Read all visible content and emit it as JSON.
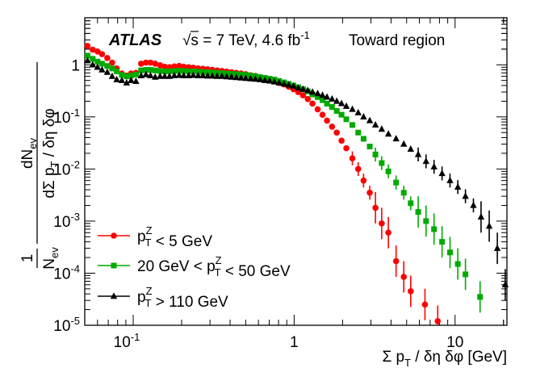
{
  "chart_data": {
    "type": "scatter",
    "xscale": "log",
    "yscale": "log",
    "xlim": [
      0.05,
      21
    ],
    "ylim": [
      1e-05,
      8
    ],
    "xlabel": "Σ p_T / δη δφ [GeV]",
    "ylabel": "1/N_ev dN_ev/dΣ p_T / δη δφ",
    "x_tick_labels": [
      "10^-1",
      "1",
      "10"
    ],
    "y_tick_labels": [
      "10^-5",
      "10^-4",
      "10^-3",
      "10^-2",
      "10^-1",
      "1"
    ],
    "experiment_label": "ATLAS",
    "energy_text": "√s = 7 TeV, 4.6 fb⁻¹",
    "region_text": "Toward region",
    "legend_position": "bottom-left",
    "series": [
      {
        "name": "p_T^Z < 5 GeV",
        "color": "#ff0000",
        "marker": "circle",
        "points": [
          [
            0.052,
            2.3
          ],
          [
            0.056,
            1.95
          ],
          [
            0.06,
            1.8
          ],
          [
            0.064,
            1.6
          ],
          [
            0.069,
            1.35
          ],
          [
            0.074,
            1.1
          ],
          [
            0.079,
            0.85
          ],
          [
            0.085,
            0.68
          ],
          [
            0.091,
            0.62
          ],
          [
            0.097,
            0.68
          ],
          [
            0.104,
            0.7
          ],
          [
            0.112,
            1.05
          ],
          [
            0.12,
            1.1
          ],
          [
            0.128,
            1.1
          ],
          [
            0.137,
            1.05
          ],
          [
            0.147,
            0.98
          ],
          [
            0.157,
            0.92
          ],
          [
            0.168,
            0.9
          ],
          [
            0.18,
            0.93
          ],
          [
            0.193,
            0.95
          ],
          [
            0.206,
            0.92
          ],
          [
            0.221,
            0.9
          ],
          [
            0.236,
            0.88
          ],
          [
            0.253,
            0.85
          ],
          [
            0.271,
            0.84
          ],
          [
            0.29,
            0.82
          ],
          [
            0.31,
            0.8
          ],
          [
            0.332,
            0.78
          ],
          [
            0.356,
            0.76
          ],
          [
            0.381,
            0.74
          ],
          [
            0.408,
            0.72
          ],
          [
            0.437,
            0.7
          ],
          [
            0.468,
            0.68
          ],
          [
            0.5,
            0.66
          ],
          [
            0.536,
            0.63
          ],
          [
            0.574,
            0.61
          ],
          [
            0.614,
            0.58
          ],
          [
            0.658,
            0.55
          ],
          [
            0.704,
            0.52
          ],
          [
            0.754,
            0.49
          ],
          [
            0.807,
            0.45
          ],
          [
            0.864,
            0.42
          ],
          [
            0.925,
            0.38
          ],
          [
            0.99,
            0.34
          ],
          [
            1.06,
            0.3
          ],
          [
            1.135,
            0.26
          ],
          [
            1.215,
            0.22
          ],
          [
            1.3,
            0.18
          ],
          [
            1.4,
            0.14
          ],
          [
            1.5,
            0.11
          ],
          [
            1.6,
            0.085
          ],
          [
            1.72,
            0.065
          ],
          [
            1.84,
            0.05
          ],
          [
            1.97,
            0.035
          ],
          [
            2.11,
            0.025
          ],
          [
            2.3,
            0.016
          ],
          [
            2.5,
            0.01
          ],
          [
            2.7,
            0.006
          ],
          [
            2.95,
            0.0035
          ],
          [
            3.2,
            0.0018
          ],
          [
            3.5,
            0.0009
          ],
          [
            3.85,
            0.0006
          ],
          [
            4.3,
            0.00017
          ],
          [
            4.8,
            8.5e-05
          ],
          [
            5.3,
            4.5e-05
          ],
          [
            6.5,
            2.5e-05
          ],
          [
            7.8,
            1.2e-05
          ]
        ]
      },
      {
        "name": "20 GeV < p_T^Z < 50 GeV",
        "color": "#00aa00",
        "marker": "square",
        "points": [
          [
            0.052,
            1.5
          ],
          [
            0.056,
            1.3
          ],
          [
            0.06,
            1.15
          ],
          [
            0.064,
            1.05
          ],
          [
            0.069,
            0.95
          ],
          [
            0.074,
            0.85
          ],
          [
            0.079,
            0.75
          ],
          [
            0.085,
            0.64
          ],
          [
            0.091,
            0.6
          ],
          [
            0.097,
            0.62
          ],
          [
            0.104,
            0.65
          ],
          [
            0.112,
            0.78
          ],
          [
            0.12,
            0.8
          ],
          [
            0.128,
            0.8
          ],
          [
            0.137,
            0.78
          ],
          [
            0.147,
            0.76
          ],
          [
            0.157,
            0.75
          ],
          [
            0.168,
            0.75
          ],
          [
            0.18,
            0.76
          ],
          [
            0.193,
            0.77
          ],
          [
            0.206,
            0.76
          ],
          [
            0.221,
            0.75
          ],
          [
            0.236,
            0.75
          ],
          [
            0.253,
            0.74
          ],
          [
            0.271,
            0.73
          ],
          [
            0.29,
            0.72
          ],
          [
            0.31,
            0.71
          ],
          [
            0.332,
            0.7
          ],
          [
            0.356,
            0.69
          ],
          [
            0.381,
            0.68
          ],
          [
            0.408,
            0.67
          ],
          [
            0.437,
            0.66
          ],
          [
            0.468,
            0.65
          ],
          [
            0.5,
            0.64
          ],
          [
            0.536,
            0.62
          ],
          [
            0.574,
            0.6
          ],
          [
            0.614,
            0.58
          ],
          [
            0.658,
            0.56
          ],
          [
            0.704,
            0.54
          ],
          [
            0.754,
            0.52
          ],
          [
            0.807,
            0.49
          ],
          [
            0.864,
            0.46
          ],
          [
            0.925,
            0.43
          ],
          [
            0.99,
            0.4
          ],
          [
            1.06,
            0.37
          ],
          [
            1.135,
            0.34
          ],
          [
            1.215,
            0.31
          ],
          [
            1.3,
            0.27
          ],
          [
            1.4,
            0.24
          ],
          [
            1.5,
            0.21
          ],
          [
            1.6,
            0.18
          ],
          [
            1.72,
            0.155
          ],
          [
            1.84,
            0.13
          ],
          [
            1.97,
            0.11
          ],
          [
            2.11,
            0.09
          ],
          [
            2.3,
            0.07
          ],
          [
            2.5,
            0.05
          ],
          [
            2.7,
            0.038
          ],
          [
            2.95,
            0.027
          ],
          [
            3.2,
            0.019
          ],
          [
            3.5,
            0.013
          ],
          [
            3.85,
            0.009
          ],
          [
            4.3,
            0.0055
          ],
          [
            4.8,
            0.0035
          ],
          [
            5.3,
            0.0022
          ],
          [
            5.9,
            0.0015
          ],
          [
            6.6,
            0.001
          ],
          [
            7.4,
            0.0007
          ],
          [
            8.3,
            0.0004
          ],
          [
            9.3,
            0.00025
          ],
          [
            10.4,
            0.00015
          ],
          [
            11.6,
            9.5e-05
          ],
          [
            14.3,
            3.5e-05
          ]
        ]
      },
      {
        "name": "p_T^Z > 110 GeV",
        "color": "#000000",
        "marker": "triangle",
        "points": [
          [
            0.052,
            1.2
          ],
          [
            0.056,
            1.0
          ],
          [
            0.06,
            0.9
          ],
          [
            0.064,
            0.8
          ],
          [
            0.069,
            0.72
          ],
          [
            0.074,
            0.6
          ],
          [
            0.079,
            0.52
          ],
          [
            0.085,
            0.5
          ],
          [
            0.091,
            0.45
          ],
          [
            0.097,
            0.5
          ],
          [
            0.104,
            0.48
          ],
          [
            0.112,
            0.62
          ],
          [
            0.12,
            0.65
          ],
          [
            0.128,
            0.62
          ],
          [
            0.137,
            0.58
          ],
          [
            0.147,
            0.6
          ],
          [
            0.157,
            0.6
          ],
          [
            0.168,
            0.6
          ],
          [
            0.18,
            0.62
          ],
          [
            0.193,
            0.63
          ],
          [
            0.206,
            0.62
          ],
          [
            0.221,
            0.62
          ],
          [
            0.236,
            0.63
          ],
          [
            0.253,
            0.62
          ],
          [
            0.271,
            0.62
          ],
          [
            0.29,
            0.61
          ],
          [
            0.31,
            0.61
          ],
          [
            0.332,
            0.6
          ],
          [
            0.356,
            0.6
          ],
          [
            0.381,
            0.59
          ],
          [
            0.408,
            0.58
          ],
          [
            0.437,
            0.57
          ],
          [
            0.468,
            0.56
          ],
          [
            0.5,
            0.55
          ],
          [
            0.536,
            0.54
          ],
          [
            0.574,
            0.53
          ],
          [
            0.614,
            0.52
          ],
          [
            0.658,
            0.5
          ],
          [
            0.704,
            0.49
          ],
          [
            0.754,
            0.47
          ],
          [
            0.807,
            0.45
          ],
          [
            0.864,
            0.43
          ],
          [
            0.925,
            0.41
          ],
          [
            0.99,
            0.39
          ],
          [
            1.06,
            0.36
          ],
          [
            1.135,
            0.34
          ],
          [
            1.215,
            0.32
          ],
          [
            1.3,
            0.3
          ],
          [
            1.4,
            0.28
          ],
          [
            1.5,
            0.26
          ],
          [
            1.6,
            0.24
          ],
          [
            1.72,
            0.22
          ],
          [
            1.84,
            0.2
          ],
          [
            1.97,
            0.18
          ],
          [
            2.11,
            0.16
          ],
          [
            2.3,
            0.14
          ],
          [
            2.5,
            0.12
          ],
          [
            2.7,
            0.1
          ],
          [
            2.95,
            0.085
          ],
          [
            3.2,
            0.07
          ],
          [
            3.5,
            0.058
          ],
          [
            3.85,
            0.047
          ],
          [
            4.3,
            0.038
          ],
          [
            4.8,
            0.03
          ],
          [
            5.3,
            0.024
          ],
          [
            5.9,
            0.019
          ],
          [
            6.6,
            0.014
          ],
          [
            7.4,
            0.011
          ],
          [
            8.3,
            0.0082
          ],
          [
            9.3,
            0.006
          ],
          [
            10.4,
            0.0045
          ],
          [
            11.6,
            0.003
          ],
          [
            13.0,
            0.002
          ],
          [
            14.5,
            0.0012
          ],
          [
            16.3,
            0.0008
          ],
          [
            18.3,
            0.0003
          ],
          [
            20.5,
            6e-05
          ]
        ]
      }
    ]
  }
}
